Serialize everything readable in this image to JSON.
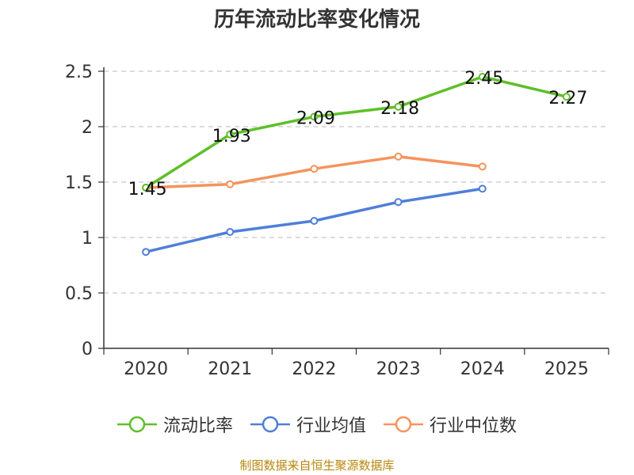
{
  "chart_data": {
    "type": "line",
    "title": "历年流动比率变化情况",
    "categories": [
      "2020",
      "2021",
      "2022",
      "2023",
      "2024",
      "2025"
    ],
    "ylim": [
      0,
      2.5
    ],
    "yticks": [
      0,
      0.5,
      1,
      1.5,
      2,
      2.5
    ],
    "ytick_labels": [
      "0",
      "0.5",
      "1",
      "1.5",
      "2",
      "2.5"
    ],
    "grid": true,
    "legend_position": "bottom",
    "series": [
      {
        "name": "流动比率",
        "color": "#5fbf2a",
        "values": [
          1.45,
          1.93,
          2.09,
          2.18,
          2.45,
          2.27
        ],
        "labels": [
          "1.45",
          "1.93",
          "2.09",
          "2.18",
          "2.45",
          "2.27"
        ]
      },
      {
        "name": "行业均值",
        "color": "#4f7fd9",
        "values": [
          0.87,
          1.05,
          1.15,
          1.32,
          1.44,
          null
        ],
        "labels": null
      },
      {
        "name": "行业中位数",
        "color": "#f5935d",
        "values": [
          1.45,
          1.48,
          1.62,
          1.73,
          1.64,
          null
        ],
        "labels": null
      }
    ]
  },
  "footer": {
    "source": "制图数据来自恒生聚源数据库"
  }
}
